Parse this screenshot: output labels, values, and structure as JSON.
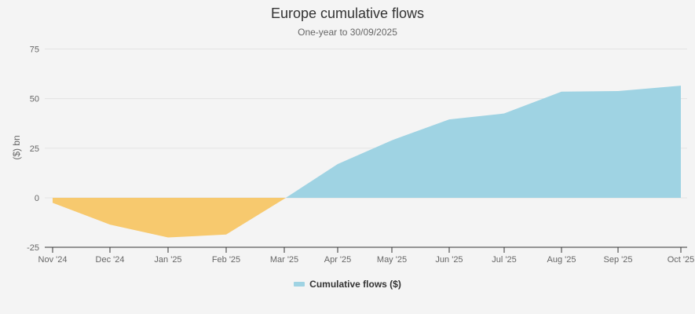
{
  "chart_data": {
    "type": "area",
    "title": "Europe cumulative flows",
    "subtitle": "One-year to 30/09/2025",
    "xlabel": "",
    "ylabel": "($) bn",
    "ylim": [
      -25,
      75
    ],
    "yticks": [
      75,
      50,
      25,
      0,
      -25
    ],
    "categories": [
      "Nov '24",
      "Dec '24",
      "Jan '25",
      "Feb '25",
      "Mar '25",
      "Apr '25",
      "May '25",
      "Jun '25",
      "Jul '25",
      "Aug '25",
      "Sep '25",
      "Oct '25"
    ],
    "series": [
      {
        "name": "Cumulative flows ($)",
        "values": [
          -2.5,
          -13.5,
          -20,
          -18.5,
          -0.5,
          17,
          29,
          39.5,
          42.5,
          53.5,
          53.8,
          56.5
        ]
      }
    ],
    "colors": {
      "positive": "#9fd3e3",
      "negative": "#f7c96e"
    },
    "grid": true,
    "legend_position": "bottom"
  },
  "legend": {
    "label": "Cumulative flows ($)"
  }
}
